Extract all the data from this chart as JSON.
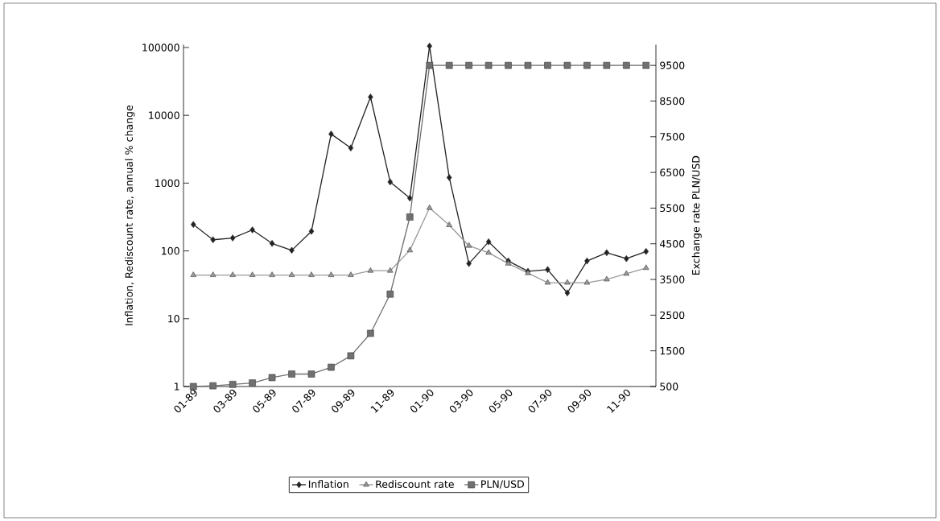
{
  "chart_data": {
    "type": "line",
    "log": "y",
    "categories": [
      "01-89",
      null,
      "03-89",
      null,
      "05-89",
      null,
      "07-89",
      null,
      "09-89",
      null,
      "11-89",
      null,
      "01-90",
      null,
      "03-90",
      null,
      "05-90",
      null,
      "07-90",
      null,
      "09-90",
      null,
      "11-90",
      null
    ],
    "series": [
      {
        "name": "Inflation",
        "color": "#222222",
        "marker": "diamond",
        "values": [
          245,
          146,
          155,
          204,
          129,
          102,
          195,
          5300,
          3300,
          18600,
          1040,
          600,
          105000,
          1210,
          65,
          136,
          71,
          50,
          53,
          24,
          71,
          94,
          77,
          98
        ]
      },
      {
        "name": "Rediscount rate",
        "color": "#999999",
        "marker": "triangle",
        "values": [
          44,
          44,
          44,
          44,
          44,
          44,
          44,
          44,
          44,
          51,
          51,
          102,
          430,
          240,
          119,
          94,
          65,
          47,
          34,
          34,
          34,
          38,
          46,
          56
        ]
      },
      {
        "name": "PLN/USD",
        "color": "#707070",
        "marker": "square",
        "axis": "y2",
        "values": [
          500,
          520,
          560,
          600,
          750,
          850,
          850,
          1040,
          1360,
          1990,
          3090,
          5250,
          9500,
          9500,
          9500,
          9500,
          9500,
          9500,
          9500,
          9500,
          9500,
          9500,
          9500,
          9500
        ]
      }
    ],
    "ylabel": "Inflation, Rediscount rate, annual % change",
    "y2label": "Exchange rate PLN/USD",
    "ylim": [
      1,
      110000
    ],
    "yticks": [
      1,
      10,
      100,
      1000,
      10000,
      100000
    ],
    "y2lim": [
      500,
      10080
    ],
    "y2ticks": [
      500,
      1500,
      2500,
      3500,
      4500,
      5500,
      6500,
      7500,
      8500,
      9500
    ],
    "legend": "bottom"
  }
}
